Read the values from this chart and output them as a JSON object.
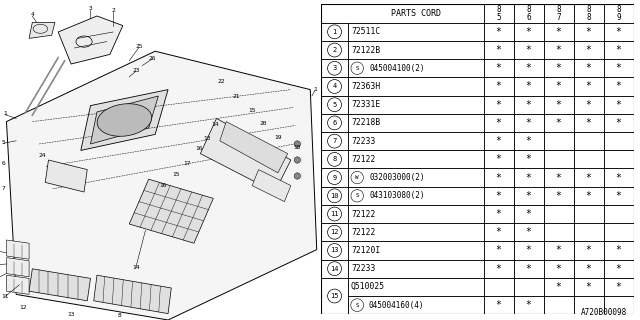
{
  "footer": "A720B00098",
  "years": [
    "85",
    "86",
    "87",
    "88",
    "89"
  ],
  "rows": [
    {
      "num": "1",
      "prefix": "",
      "code": "72511C",
      "stars": [
        1,
        1,
        1,
        1,
        1
      ],
      "double": false
    },
    {
      "num": "2",
      "prefix": "",
      "code": "72122B",
      "stars": [
        1,
        1,
        1,
        1,
        1
      ],
      "double": false
    },
    {
      "num": "3",
      "prefix": "S",
      "code": "045004100(2)",
      "stars": [
        1,
        1,
        1,
        1,
        1
      ],
      "double": false
    },
    {
      "num": "4",
      "prefix": "",
      "code": "72363H",
      "stars": [
        1,
        1,
        1,
        1,
        1
      ],
      "double": false
    },
    {
      "num": "5",
      "prefix": "",
      "code": "72331E",
      "stars": [
        1,
        1,
        1,
        1,
        1
      ],
      "double": false
    },
    {
      "num": "6",
      "prefix": "",
      "code": "72218B",
      "stars": [
        1,
        1,
        1,
        1,
        1
      ],
      "double": false
    },
    {
      "num": "7",
      "prefix": "",
      "code": "72233",
      "stars": [
        1,
        1,
        0,
        0,
        0
      ],
      "double": false
    },
    {
      "num": "8",
      "prefix": "",
      "code": "72122",
      "stars": [
        1,
        1,
        0,
        0,
        0
      ],
      "double": false
    },
    {
      "num": "9",
      "prefix": "W",
      "code": "032003000(2)",
      "stars": [
        1,
        1,
        1,
        1,
        1
      ],
      "double": false
    },
    {
      "num": "10",
      "prefix": "S",
      "code": "043103080(2)",
      "stars": [
        1,
        1,
        1,
        1,
        1
      ],
      "double": false
    },
    {
      "num": "11",
      "prefix": "",
      "code": "72122",
      "stars": [
        1,
        1,
        0,
        0,
        0
      ],
      "double": false
    },
    {
      "num": "12",
      "prefix": "",
      "code": "72122",
      "stars": [
        1,
        1,
        0,
        0,
        0
      ],
      "double": false
    },
    {
      "num": "13",
      "prefix": "",
      "code": "72120I",
      "stars": [
        1,
        1,
        1,
        1,
        1
      ],
      "double": false
    },
    {
      "num": "14",
      "prefix": "",
      "code": "72233",
      "stars": [
        1,
        1,
        1,
        1,
        1
      ],
      "double": false
    },
    {
      "num": "15",
      "prefix": "",
      "code": "Q510025",
      "stars": [
        0,
        0,
        1,
        1,
        1
      ],
      "double": true,
      "code2": "S045004160(4)",
      "stars2": [
        1,
        1,
        0,
        0,
        0
      ]
    }
  ],
  "bg_color": "#ffffff",
  "lc": "#000000"
}
